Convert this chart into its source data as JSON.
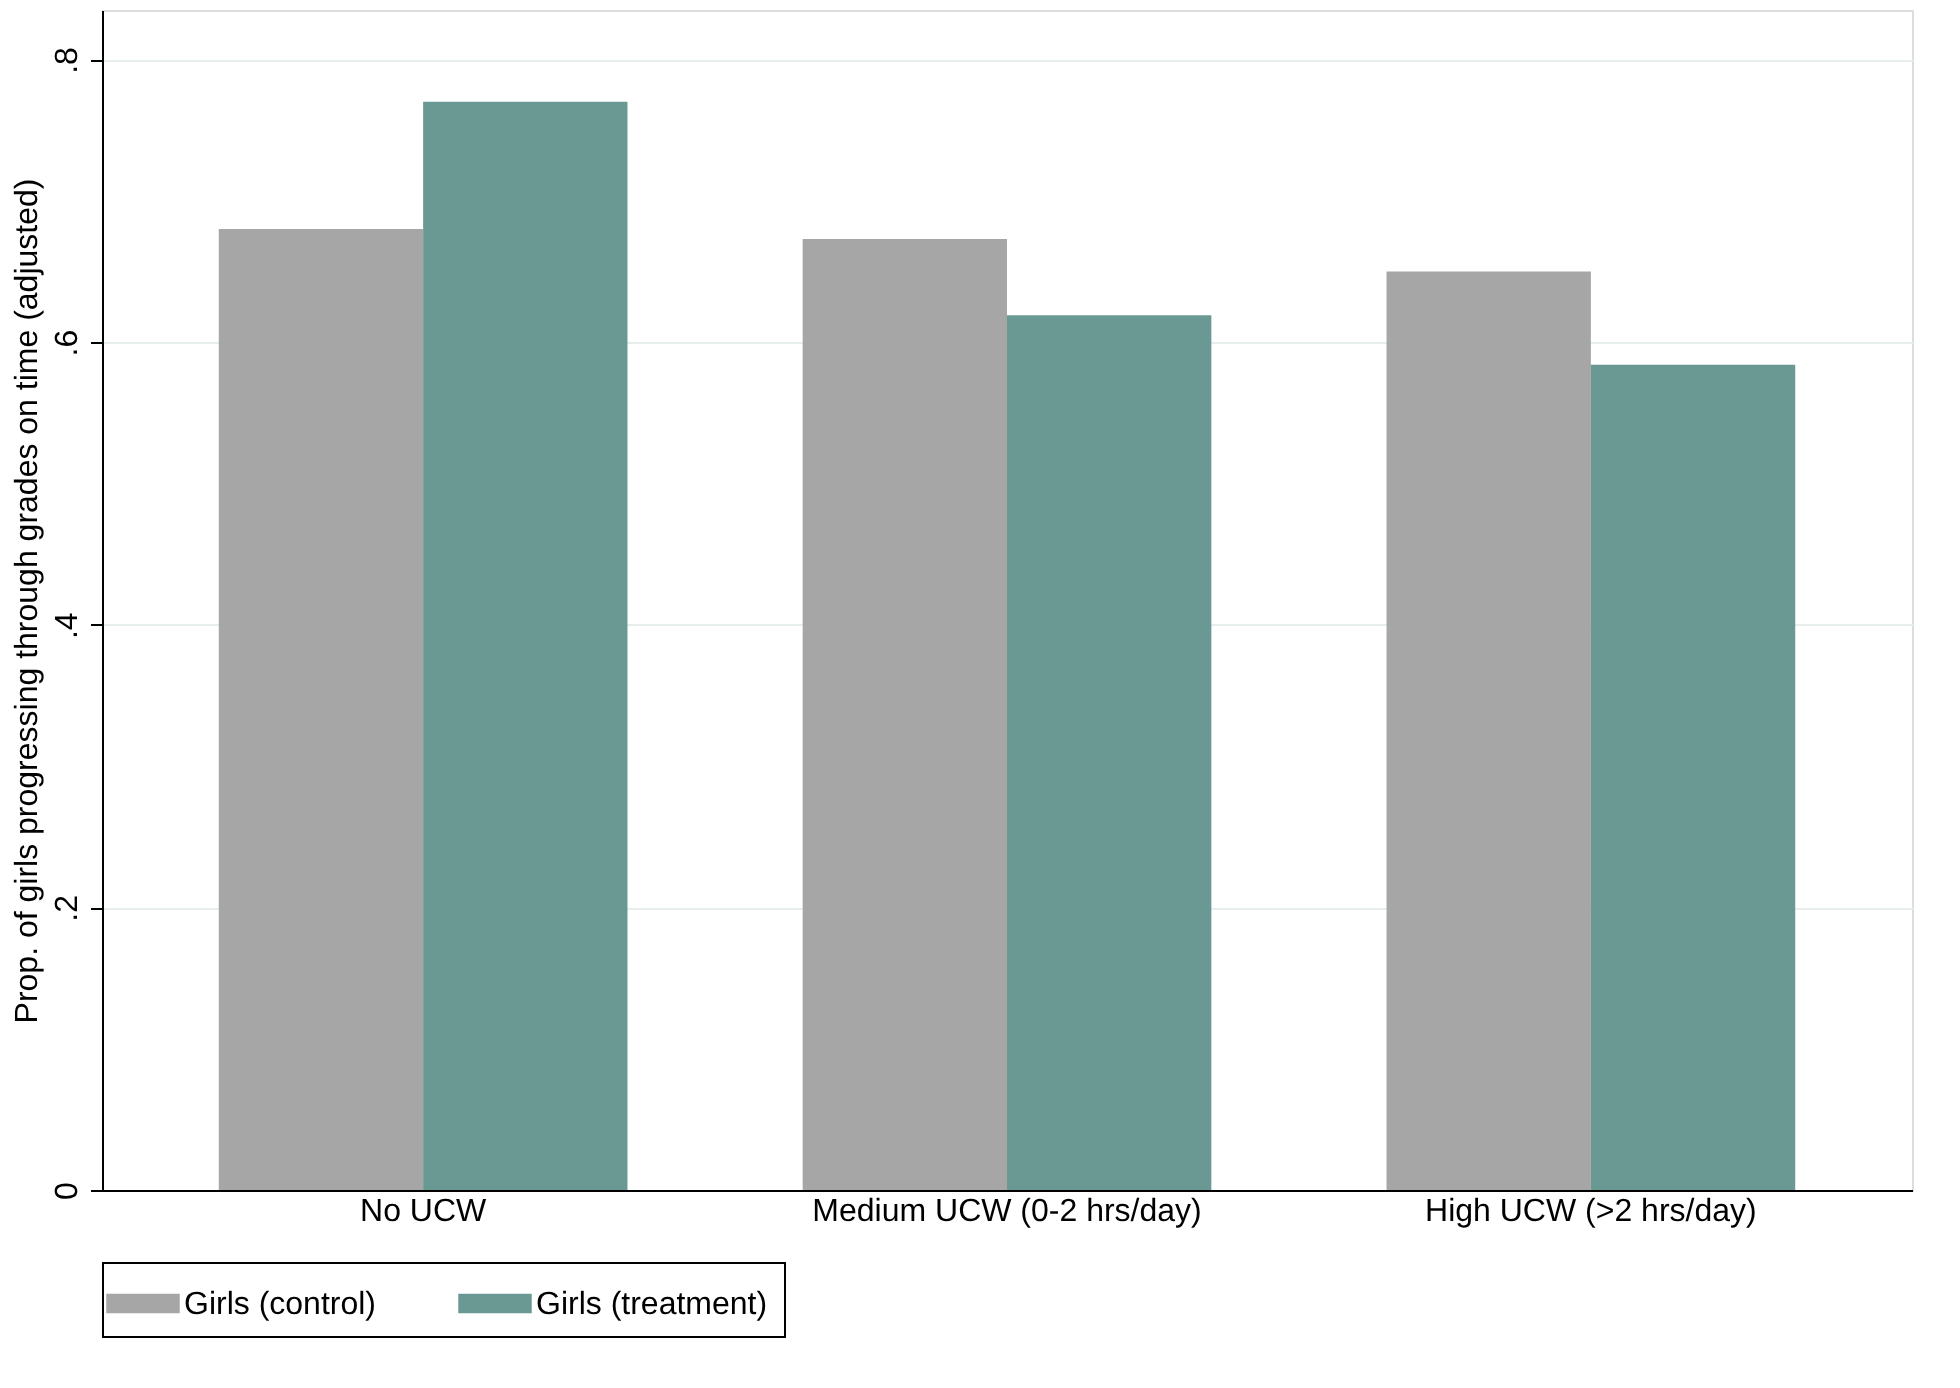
{
  "chart_data": {
    "type": "bar",
    "ylabel": "Prop. of girls progressing through grades on time (adjusted)",
    "categories": [
      "No UCW",
      "Medium UCW (0-2 hrs/day)",
      "High UCW (>2 hrs/day)"
    ],
    "series": [
      {
        "name": "Girls (control)",
        "color": "#a6a6a6",
        "values": [
          0.68,
          0.673,
          0.65
        ]
      },
      {
        "name": "Girls (treatment)",
        "color": "#6a9994",
        "values": [
          0.77,
          0.619,
          0.584
        ]
      }
    ],
    "ylim": [
      0,
      0.835
    ],
    "yticks": [
      0,
      {
        "value": 0.2,
        "label": ".2"
      },
      {
        "value": 0.4,
        "label": ".4"
      },
      {
        "value": 0.6,
        "label": ".6"
      },
      {
        "value": 0.8,
        "label": ".8"
      }
    ],
    "grid": "y",
    "legend": "bottom"
  }
}
